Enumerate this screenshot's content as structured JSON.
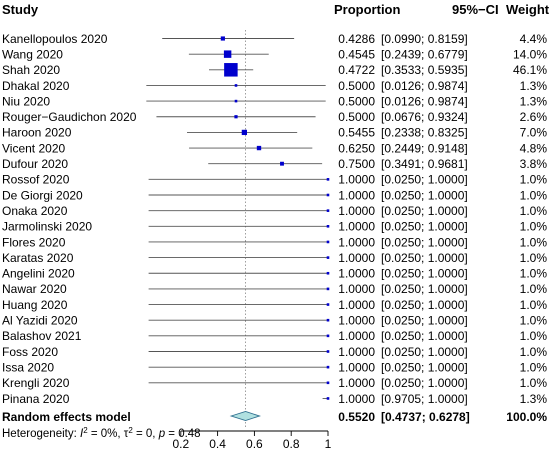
{
  "headers": {
    "study": "Study",
    "proportion": "Proportion",
    "ci": "95%−CI",
    "weight": "Weight"
  },
  "summary": {
    "label": "Random effects model",
    "proportion": "0.5520",
    "ci": "[0.4737; 0.6278]",
    "weight": "100.0%",
    "heterogeneity_prefix": "Heterogeneity: ",
    "heterogeneity_i2": "I",
    "heterogeneity_i2_sup": "2",
    "heterogeneity_rest1": " = 0%, ",
    "heterogeneity_tau": "τ",
    "heterogeneity_tau_sup": "2",
    "heterogeneity_rest2": " = 0, ",
    "heterogeneity_p": "p",
    "heterogeneity_rest3": " = 0.48"
  },
  "colors": {
    "point": "#0000cd",
    "diamond_fill": "#b0e0e0",
    "diamond_stroke": "#2f6f8f",
    "line": "#555555"
  },
  "chart_data": {
    "type": "forest",
    "xlim": [
      0,
      1
    ],
    "x_ticks": [
      "0.2",
      "0.4",
      "0.6",
      "0.8",
      "1"
    ],
    "x_tick_values": [
      0.2,
      0.4,
      0.6,
      0.8,
      1.0
    ],
    "reference_line": 0.552,
    "summary_estimate": {
      "est": 0.552,
      "lo": 0.4737,
      "hi": 0.6278
    },
    "studies": [
      {
        "name": "Kanellopoulos 2020",
        "est": 0.4286,
        "lo": 0.099,
        "hi": 0.8159,
        "prop": "0.4286",
        "ci": "[0.0990; 0.8159]",
        "weight": "4.4%",
        "w": 4.4
      },
      {
        "name": "Wang 2020",
        "est": 0.4545,
        "lo": 0.2439,
        "hi": 0.6779,
        "prop": "0.4545",
        "ci": "[0.2439; 0.6779]",
        "weight": "14.0%",
        "w": 14.0
      },
      {
        "name": "Shah 2020",
        "est": 0.4722,
        "lo": 0.3533,
        "hi": 0.5935,
        "prop": "0.4722",
        "ci": "[0.3533; 0.5935]",
        "weight": "46.1%",
        "w": 46.1
      },
      {
        "name": "Dhakal 2020",
        "est": 0.5,
        "lo": 0.0126,
        "hi": 0.9874,
        "prop": "0.5000",
        "ci": "[0.0126; 0.9874]",
        "weight": "1.3%",
        "w": 1.3
      },
      {
        "name": "Niu 2020",
        "est": 0.5,
        "lo": 0.0126,
        "hi": 0.9874,
        "prop": "0.5000",
        "ci": "[0.0126; 0.9874]",
        "weight": "1.3%",
        "w": 1.3
      },
      {
        "name": "Rouger−Gaudichon 2020",
        "est": 0.5,
        "lo": 0.0676,
        "hi": 0.9324,
        "prop": "0.5000",
        "ci": "[0.0676; 0.9324]",
        "weight": "2.6%",
        "w": 2.6
      },
      {
        "name": "Haroon 2020",
        "est": 0.5455,
        "lo": 0.2338,
        "hi": 0.8325,
        "prop": "0.5455",
        "ci": "[0.2338; 0.8325]",
        "weight": "7.0%",
        "w": 7.0
      },
      {
        "name": "Vicent 2020",
        "est": 0.625,
        "lo": 0.2449,
        "hi": 0.9148,
        "prop": "0.6250",
        "ci": "[0.2449; 0.9148]",
        "weight": "4.8%",
        "w": 4.8
      },
      {
        "name": "Dufour 2020",
        "est": 0.75,
        "lo": 0.3491,
        "hi": 0.9681,
        "prop": "0.7500",
        "ci": "[0.3491; 0.9681]",
        "weight": "3.8%",
        "w": 3.8
      },
      {
        "name": "Rossof 2020",
        "est": 1.0,
        "lo": 0.025,
        "hi": 1.0,
        "prop": "1.0000",
        "ci": "[0.0250; 1.0000]",
        "weight": "1.0%",
        "w": 1.0
      },
      {
        "name": "De Giorgi 2020",
        "est": 1.0,
        "lo": 0.025,
        "hi": 1.0,
        "prop": "1.0000",
        "ci": "[0.0250; 1.0000]",
        "weight": "1.0%",
        "w": 1.0
      },
      {
        "name": "Onaka 2020",
        "est": 1.0,
        "lo": 0.025,
        "hi": 1.0,
        "prop": "1.0000",
        "ci": "[0.0250; 1.0000]",
        "weight": "1.0%",
        "w": 1.0
      },
      {
        "name": "Jarmolinski 2020",
        "est": 1.0,
        "lo": 0.025,
        "hi": 1.0,
        "prop": "1.0000",
        "ci": "[0.0250; 1.0000]",
        "weight": "1.0%",
        "w": 1.0
      },
      {
        "name": "Flores 2020",
        "est": 1.0,
        "lo": 0.025,
        "hi": 1.0,
        "prop": "1.0000",
        "ci": "[0.0250; 1.0000]",
        "weight": "1.0%",
        "w": 1.0
      },
      {
        "name": "Karatas 2020",
        "est": 1.0,
        "lo": 0.025,
        "hi": 1.0,
        "prop": "1.0000",
        "ci": "[0.0250; 1.0000]",
        "weight": "1.0%",
        "w": 1.0
      },
      {
        "name": "Angelini 2020",
        "est": 1.0,
        "lo": 0.025,
        "hi": 1.0,
        "prop": "1.0000",
        "ci": "[0.0250; 1.0000]",
        "weight": "1.0%",
        "w": 1.0
      },
      {
        "name": "Nawar 2020",
        "est": 1.0,
        "lo": 0.025,
        "hi": 1.0,
        "prop": "1.0000",
        "ci": "[0.0250; 1.0000]",
        "weight": "1.0%",
        "w": 1.0
      },
      {
        "name": "Huang 2020",
        "est": 1.0,
        "lo": 0.025,
        "hi": 1.0,
        "prop": "1.0000",
        "ci": "[0.0250; 1.0000]",
        "weight": "1.0%",
        "w": 1.0
      },
      {
        "name": "Al Yazidi 2020",
        "est": 1.0,
        "lo": 0.025,
        "hi": 1.0,
        "prop": "1.0000",
        "ci": "[0.0250; 1.0000]",
        "weight": "1.0%",
        "w": 1.0
      },
      {
        "name": "Balashov 2021",
        "est": 1.0,
        "lo": 0.025,
        "hi": 1.0,
        "prop": "1.0000",
        "ci": "[0.0250; 1.0000]",
        "weight": "1.0%",
        "w": 1.0
      },
      {
        "name": "Foss 2020",
        "est": 1.0,
        "lo": 0.025,
        "hi": 1.0,
        "prop": "1.0000",
        "ci": "[0.0250; 1.0000]",
        "weight": "1.0%",
        "w": 1.0
      },
      {
        "name": "Issa 2020",
        "est": 1.0,
        "lo": 0.025,
        "hi": 1.0,
        "prop": "1.0000",
        "ci": "[0.0250; 1.0000]",
        "weight": "1.0%",
        "w": 1.0
      },
      {
        "name": "Krengli 2020",
        "est": 1.0,
        "lo": 0.025,
        "hi": 1.0,
        "prop": "1.0000",
        "ci": "[0.0250; 1.0000]",
        "weight": "1.0%",
        "w": 1.0
      },
      {
        "name": "Pinana 2020",
        "est": 1.0,
        "lo": 0.9705,
        "hi": 1.0,
        "prop": "1.0000",
        "ci": "[0.9705; 1.0000]",
        "weight": "1.3%",
        "w": 1.3
      }
    ]
  }
}
